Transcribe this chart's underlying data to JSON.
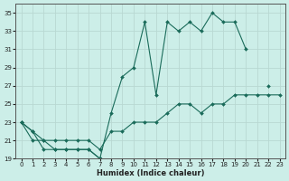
{
  "xlabel": "Humidex (Indice chaleur)",
  "bg_color": "#cceee8",
  "grid_color": "#b8d8d2",
  "line_color": "#1a6b5a",
  "x": [
    0,
    1,
    2,
    3,
    4,
    5,
    6,
    7,
    8,
    9,
    10,
    11,
    12,
    13,
    14,
    15,
    16,
    17,
    18,
    19,
    20,
    21,
    22,
    23
  ],
  "y_max": [
    23,
    22,
    21,
    20,
    20,
    20,
    20,
    19,
    24,
    28,
    29,
    34,
    26,
    34,
    33,
    34,
    33,
    35,
    34,
    34,
    31,
    null,
    27,
    null
  ],
  "y_min": [
    23,
    22,
    20,
    20,
    20,
    20,
    20,
    19,
    null,
    null,
    null,
    null,
    null,
    null,
    null,
    null,
    null,
    null,
    null,
    null,
    null,
    null,
    null,
    null
  ],
  "y_mean": [
    23,
    21,
    21,
    21,
    21,
    21,
    21,
    20,
    22,
    22,
    23,
    23,
    23,
    24,
    25,
    25,
    24,
    25,
    25,
    26,
    26,
    26,
    26,
    26
  ],
  "ylim": [
    19,
    36
  ],
  "xlim": [
    -0.5,
    23.5
  ],
  "yticks": [
    19,
    21,
    23,
    25,
    27,
    29,
    31,
    33,
    35
  ],
  "xticks": [
    0,
    1,
    2,
    3,
    4,
    5,
    6,
    7,
    8,
    9,
    10,
    11,
    12,
    13,
    14,
    15,
    16,
    17,
    18,
    19,
    20,
    21,
    22,
    23
  ]
}
